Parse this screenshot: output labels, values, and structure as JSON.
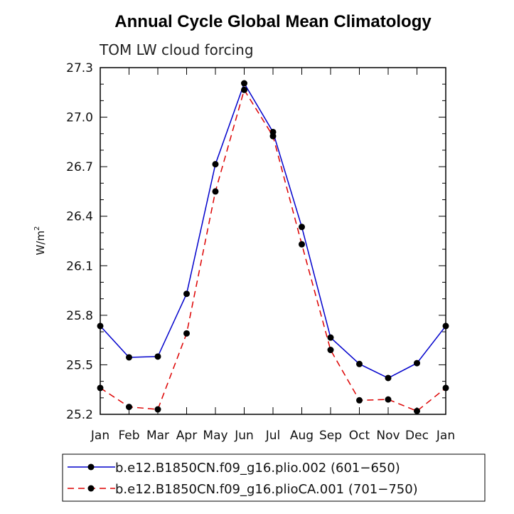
{
  "chart_data": {
    "type": "line",
    "title": "Annual Cycle Global Mean Climatology",
    "subtitle": "TOM LW cloud forcing",
    "ylabel": "W/m",
    "ylabel_superscript": "2",
    "xlabel": "",
    "categories": [
      "Jan",
      "Feb",
      "Mar",
      "Apr",
      "May",
      "Jun",
      "Jul",
      "Aug",
      "Sep",
      "Oct",
      "Nov",
      "Dec",
      "Jan"
    ],
    "ylim": [
      25.2,
      27.3
    ],
    "yticks": [
      "25.2",
      "25.5",
      "25.8",
      "26.1",
      "26.4",
      "26.7",
      "27.0",
      "27.3"
    ],
    "series": [
      {
        "name": "b.e12.B1850CN.f09_g16.plio.002 (601−650)",
        "color": "#0000cc",
        "dash": "solid",
        "values": [
          25.735,
          25.545,
          25.55,
          25.93,
          26.715,
          27.205,
          26.91,
          26.335,
          25.665,
          25.505,
          25.42,
          25.51,
          25.735
        ]
      },
      {
        "name": "b.e12.B1850CN.f09_g16.plioCA.001 (701−750)",
        "color": "#dd0000",
        "dash": "dashed",
        "values": [
          25.36,
          25.245,
          25.23,
          25.69,
          26.55,
          27.165,
          26.885,
          26.23,
          25.59,
          25.285,
          25.29,
          25.22,
          25.36
        ]
      }
    ]
  }
}
